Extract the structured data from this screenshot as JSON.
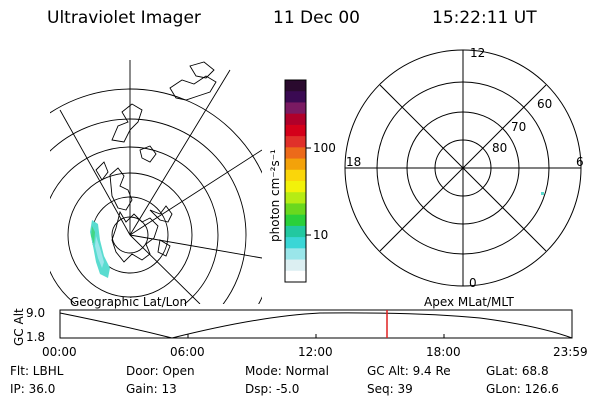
{
  "header": {
    "instrument": "Ultraviolet Imager",
    "date": "11 Dec 00",
    "time": "15:22:11 UT"
  },
  "colorbar": {
    "label": "photon cm⁻²s⁻¹",
    "ticks": [
      "100",
      "10"
    ],
    "colors": [
      "#2a0a2e",
      "#3a0a52",
      "#7a1a62",
      "#b0002a",
      "#d4001a",
      "#e0302a",
      "#ec6a1a",
      "#f3a20a",
      "#fad60a",
      "#f2f20a",
      "#b6ec14",
      "#6ad81e",
      "#2ad03a",
      "#22c8a0",
      "#3ad6d6",
      "#9ae6ea",
      "#dceff2",
      "#ffffff"
    ]
  },
  "polar": {
    "mlt_labels": [
      "12",
      "18",
      "6",
      "0"
    ],
    "lat_labels": [
      "60",
      "70",
      "80"
    ]
  },
  "labels": {
    "left_panel": "Geographic Lat/Lon",
    "right_panel": "Apex MLat/MLT"
  },
  "timeline": {
    "ylabel": "GC Alt",
    "y_ticks": [
      "9.0",
      "1.8"
    ],
    "x_ticks": [
      "00:00",
      "06:00",
      "12:00",
      "18:00",
      "23:59"
    ],
    "marker_color": "#e02020"
  },
  "info": {
    "row1": [
      "Flt: LBHL",
      "Door: Open",
      "Mode: Normal",
      "GC Alt: 9.4 Re",
      "GLat:  68.8"
    ],
    "row2": [
      "IP: 36.0",
      "Gain: 13",
      "Dsp:    -5.0",
      "Seq: 39",
      "GLon: 126.6"
    ]
  }
}
